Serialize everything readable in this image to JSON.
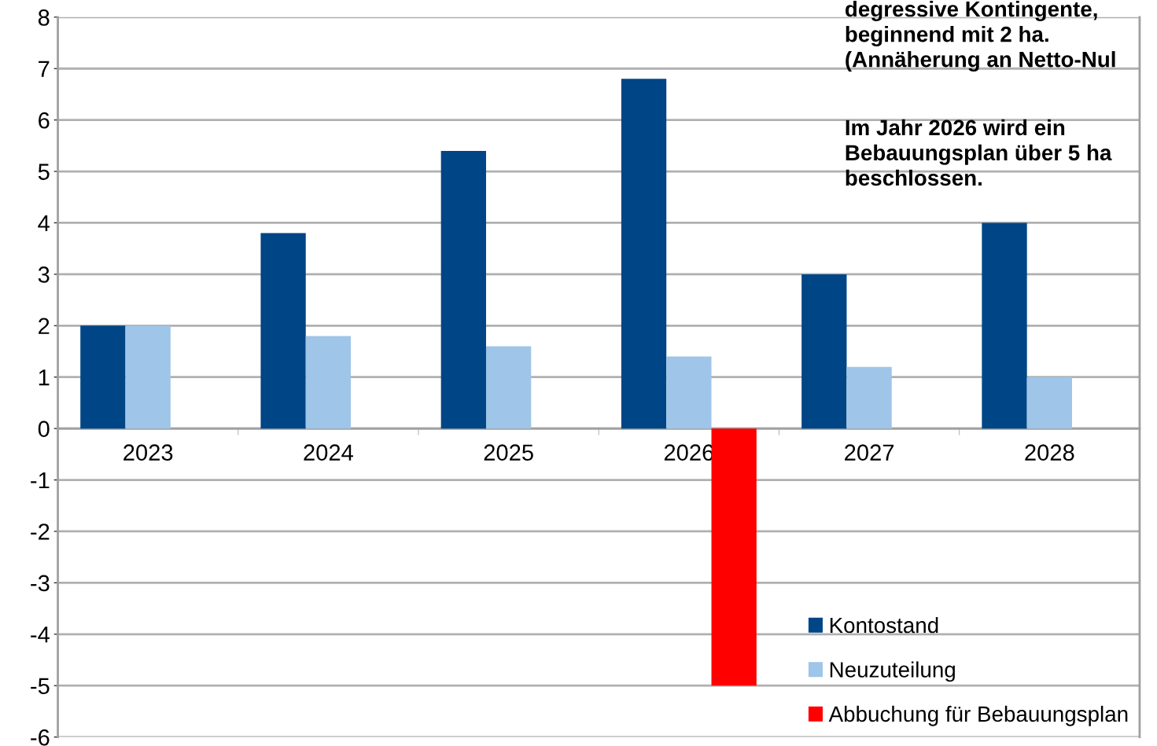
{
  "chart_data": {
    "type": "bar",
    "categories": [
      "2023",
      "2024",
      "2025",
      "2026",
      "2027",
      "2028"
    ],
    "series": [
      {
        "name": "Kontostand",
        "color": "#004586",
        "values": [
          2,
          3.8,
          5.4,
          6.8,
          3,
          4
        ]
      },
      {
        "name": "Neuzuteilung",
        "color": "#9fc5e8",
        "values": [
          2,
          1.8,
          1.6,
          1.4,
          1.2,
          1.0
        ]
      },
      {
        "name": "Abbuchung für Bebauungsplan",
        "color": "#ff0000",
        "values": [
          null,
          null,
          null,
          -5,
          null,
          null
        ]
      }
    ],
    "ylim": [
      -6,
      8
    ],
    "yticks": [
      -6,
      -5,
      -4,
      -3,
      -2,
      -1,
      0,
      1,
      2,
      3,
      4,
      5,
      6,
      7,
      8
    ],
    "grid": "y",
    "legend": "bottom right",
    "annotations": [
      "degressive Kontingente,\nbeginnend mit 2 ha.\n(Annäherung an Netto-Nul",
      "Im Jahr 2026 wird ein\nBebauungsplan über 5 ha\nbeschlossen."
    ]
  }
}
